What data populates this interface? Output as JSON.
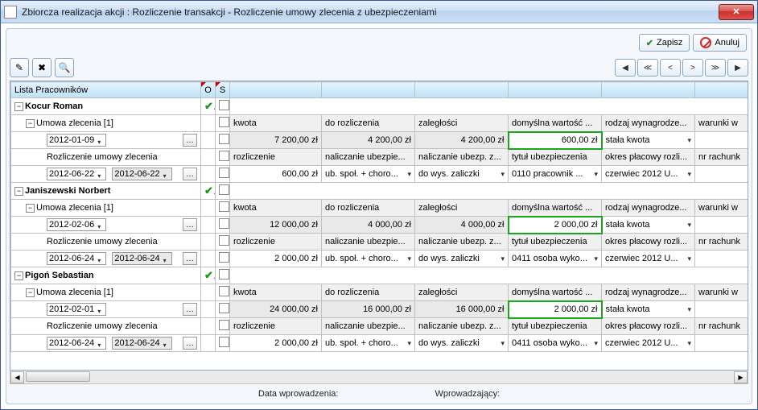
{
  "window": {
    "title": "Zbiorcza realizacja akcji :  Rozliczenie transakcji - Rozliczenie umowy zlecenia z ubezpieczeniami"
  },
  "buttons": {
    "save": "Zapisz",
    "cancel": "Anuluj"
  },
  "grid": {
    "header_lista": "Lista Pracowników",
    "header_o": "O",
    "header_s": "S",
    "labels": {
      "kwota": "kwota",
      "do_rozliczenia": "do rozliczenia",
      "zaleglosci": "zaległości",
      "domyslna": "domyślna wartość ...",
      "rodzaj_wyn": "rodzaj wynagrodze...",
      "warunki": "warunki w",
      "rozliczenie": "rozliczenie",
      "nalicz_ubezp": "naliczanie ubezpie...",
      "nalicz_ubezp_z": "naliczanie ubezp. z...",
      "tytul_ubezp": "tytuł ubezpieczenia",
      "okres_plac": "okres płacowy rozli...",
      "nr_rachunk": "nr rachunk",
      "umowa": "Umowa zlecenia [1]",
      "rozl_uz": "Rozliczenie umowy zlecenia"
    },
    "options": {
      "stala_kwota": "stała kwota",
      "ub_spol": "ub. społ. + choro...",
      "do_wys": "do wys. zaliczki",
      "prac_0110": "0110 pracownik ...",
      "osoba_0411": "0411 osoba wyko...",
      "czerwiec": "czerwiec 2012 U..."
    },
    "workers": [
      {
        "name": "Kocur Roman",
        "umowa_date": "2012-01-09",
        "kwota": "7 200,00 zł",
        "do_rozl": "4 200,00 zł",
        "zaleg": "4 200,00 zł",
        "domyslna": "600,00 zł",
        "rozl_d1": "2012-06-22",
        "rozl_d2": "2012-06-22",
        "rozl_val": "600,00 zł",
        "tytul": "0110 pracownik ..."
      },
      {
        "name": "Janiszewski Norbert",
        "umowa_date": "2012-02-06",
        "kwota": "12 000,00 zł",
        "do_rozl": "4 000,00 zł",
        "zaleg": "4 000,00 zł",
        "domyslna": "2 000,00 zł",
        "rozl_d1": "2012-06-24",
        "rozl_d2": "2012-06-24",
        "rozl_val": "2 000,00 zł",
        "tytul": "0411 osoba wyko..."
      },
      {
        "name": "Pigoń Sebastian",
        "umowa_date": "2012-02-01",
        "kwota": "24 000,00 zł",
        "do_rozl": "16 000,00 zł",
        "zaleg": "16 000,00 zł",
        "domyslna": "2 000,00 zł",
        "rozl_d1": "2012-06-24",
        "rozl_d2": "2012-06-24",
        "rozl_val": "2 000,00 zł",
        "tytul": "0411 osoba wyko..."
      }
    ]
  },
  "footer": {
    "data_wprow": "Data wprowadzenia:",
    "wprowadzajacy": "Wprowadzający:"
  },
  "colors": {
    "lista_bg": "#00e5e5",
    "green_border": "#1aa61a",
    "header_grad_top": "#e6f3fd",
    "header_grad_bot": "#bde1f8"
  }
}
